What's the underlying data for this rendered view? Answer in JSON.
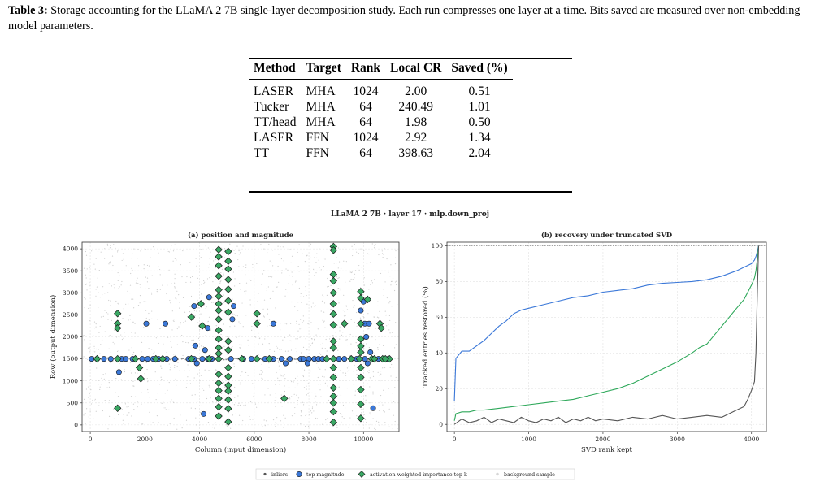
{
  "caption": {
    "label": "Table 3:",
    "text": "Storage accounting for the LLaMA 2 7B single-layer decomposition study. Each run compresses one layer at a time. Bits saved are measured over non-embedding model parameters."
  },
  "table": {
    "headers": [
      "Method",
      "Target",
      "Rank",
      "Local CR",
      "Saved (%)"
    ],
    "rows": [
      [
        "LASER",
        "MHA",
        "1024",
        "2.00",
        "0.51"
      ],
      [
        "Tucker",
        "MHA",
        "64",
        "240.49",
        "1.01"
      ],
      [
        "TT/head",
        "MHA",
        "64",
        "1.98",
        "0.50"
      ],
      [
        "LASER",
        "FFN",
        "1024",
        "2.92",
        "1.34"
      ],
      [
        "TT",
        "FFN",
        "64",
        "398.63",
        "2.04"
      ]
    ]
  },
  "figure": {
    "suptitle": "LLaMA 2 7B · layer 17 · mlp.down_proj",
    "legend": [
      "inliers",
      "top magnitude",
      "activation-weighted importance top-k",
      "background sample"
    ]
  },
  "chart_data": [
    {
      "type": "scatter",
      "title": "(a) position and magnitude",
      "xlabel": "Column (input dimension)",
      "ylabel": "Row (output dimension)",
      "xlim": [
        -300,
        11300
      ],
      "ylim": [
        -150,
        4150
      ],
      "xticks": [
        0,
        2000,
        4000,
        6000,
        8000,
        10000
      ],
      "yticks": [
        0,
        500,
        1000,
        1500,
        2000,
        2500,
        3000,
        3500,
        4000
      ],
      "grid": true,
      "series": [
        {
          "name": "top magnitude",
          "color": "#3b78d8",
          "points": [
            [
              50,
              1500
            ],
            [
              250,
              1500
            ],
            [
              500,
              1500
            ],
            [
              750,
              1500
            ],
            [
              1150,
              1500
            ],
            [
              1300,
              1500
            ],
            [
              1550,
              1500
            ],
            [
              1900,
              1500
            ],
            [
              2100,
              1500
            ],
            [
              2300,
              1500
            ],
            [
              2500,
              1500
            ],
            [
              2800,
              1500
            ],
            [
              3100,
              1500
            ],
            [
              3600,
              1500
            ],
            [
              3800,
              1500
            ],
            [
              4100,
              1500
            ],
            [
              4300,
              1500
            ],
            [
              4450,
              1500
            ],
            [
              5150,
              1500
            ],
            [
              5600,
              1500
            ],
            [
              5900,
              1500
            ],
            [
              6400,
              1500
            ],
            [
              6700,
              1500
            ],
            [
              7000,
              1500
            ],
            [
              7300,
              1500
            ],
            [
              7700,
              1500
            ],
            [
              7800,
              1500
            ],
            [
              8000,
              1500
            ],
            [
              8200,
              1500
            ],
            [
              8350,
              1500
            ],
            [
              8500,
              1500
            ],
            [
              9100,
              1500
            ],
            [
              9300,
              1500
            ],
            [
              9550,
              1500
            ],
            [
              9750,
              1500
            ],
            [
              10050,
              1500
            ],
            [
              10350,
              1500
            ],
            [
              10550,
              1500
            ],
            [
              10800,
              1500
            ],
            [
              10900,
              1500
            ],
            [
              1050,
              1200
            ],
            [
              2050,
              2300
            ],
            [
              2750,
              2300
            ],
            [
              3800,
              2700
            ],
            [
              3850,
              1800
            ],
            [
              3900,
              1400
            ],
            [
              4200,
              1700
            ],
            [
              4300,
              2200
            ],
            [
              4350,
              2900
            ],
            [
              5200,
              2400
            ],
            [
              5250,
              2700
            ],
            [
              6700,
              2300
            ],
            [
              7150,
              1400
            ],
            [
              7950,
              1400
            ],
            [
              9900,
              2600
            ],
            [
              10000,
              2800
            ],
            [
              10050,
              2300
            ],
            [
              10100,
              2000
            ],
            [
              10150,
              1400
            ],
            [
              10200,
              2300
            ],
            [
              10250,
              1650
            ],
            [
              10350,
              380
            ],
            [
              4150,
              250
            ]
          ]
        },
        {
          "name": "activation-weighted importance top-k",
          "color": "#3aa864",
          "points": [
            [
              250,
              1500
            ],
            [
              1000,
              2530
            ],
            [
              1000,
              2300
            ],
            [
              1000,
              2200
            ],
            [
              1000,
              1500
            ],
            [
              1000,
              380
            ],
            [
              1650,
              1500
            ],
            [
              1800,
              1300
            ],
            [
              1850,
              1050
            ],
            [
              2400,
              1500
            ],
            [
              2650,
              1500
            ],
            [
              3700,
              1500
            ],
            [
              3700,
              2450
            ],
            [
              4050,
              2750
            ],
            [
              4100,
              2250
            ],
            [
              4350,
              1500
            ],
            [
              4700,
              1500
            ],
            [
              4700,
              3980
            ],
            [
              4700,
              3820
            ],
            [
              4700,
              3620
            ],
            [
              4700,
              3380
            ],
            [
              4700,
              3070
            ],
            [
              4700,
              2920
            ],
            [
              4700,
              2750
            ],
            [
              4700,
              2600
            ],
            [
              4700,
              2400
            ],
            [
              4700,
              2150
            ],
            [
              4700,
              1950
            ],
            [
              4700,
              1750
            ],
            [
              4700,
              1620
            ],
            [
              4700,
              1150
            ],
            [
              4700,
              950
            ],
            [
              4700,
              780
            ],
            [
              4700,
              600
            ],
            [
              4700,
              410
            ],
            [
              4700,
              200
            ],
            [
              5050,
              3940
            ],
            [
              5050,
              3720
            ],
            [
              5050,
              3540
            ],
            [
              5050,
              3300
            ],
            [
              5050,
              3080
            ],
            [
              5050,
              2820
            ],
            [
              5050,
              2560
            ],
            [
              5050,
              1900
            ],
            [
              5050,
              1700
            ],
            [
              5050,
              1300
            ],
            [
              5050,
              1100
            ],
            [
              5050,
              900
            ],
            [
              5050,
              770
            ],
            [
              5050,
              570
            ],
            [
              5050,
              370
            ],
            [
              5050,
              70
            ],
            [
              5550,
              1500
            ],
            [
              6100,
              2530
            ],
            [
              6100,
              2300
            ],
            [
              6100,
              1500
            ],
            [
              6550,
              1500
            ],
            [
              7100,
              600
            ],
            [
              8900,
              4050
            ],
            [
              8900,
              3970
            ],
            [
              8900,
              3420
            ],
            [
              8900,
              3270
            ],
            [
              8900,
              3000
            ],
            [
              8900,
              2750
            ],
            [
              8900,
              2520
            ],
            [
              8900,
              2270
            ],
            [
              8900,
              1900
            ],
            [
              8900,
              1750
            ],
            [
              8900,
              1500
            ],
            [
              8900,
              1300
            ],
            [
              8900,
              1080
            ],
            [
              8900,
              840
            ],
            [
              8900,
              650
            ],
            [
              8900,
              500
            ],
            [
              8900,
              300
            ],
            [
              8900,
              60
            ],
            [
              9300,
              2300
            ],
            [
              9850,
              1500
            ],
            [
              9900,
              3030
            ],
            [
              9900,
              2880
            ],
            [
              9900,
              2300
            ],
            [
              9900,
              1950
            ],
            [
              9900,
              1790
            ],
            [
              9900,
              1650
            ],
            [
              9900,
              1300
            ],
            [
              9900,
              1080
            ],
            [
              9900,
              800
            ],
            [
              9900,
              470
            ],
            [
              9900,
              150
            ],
            [
              10300,
              1500
            ],
            [
              10400,
              1500
            ],
            [
              10600,
              2300
            ],
            [
              10650,
              2200
            ],
            [
              10700,
              1500
            ],
            [
              10950,
              1500
            ],
            [
              10150,
              2850
            ],
            [
              8650,
              1500
            ],
            [
              9550,
              1500
            ],
            [
              10800,
              1500
            ]
          ]
        }
      ]
    },
    {
      "type": "line",
      "title": "(b) recovery under truncated SVD",
      "xlabel": "SVD rank kept",
      "ylabel": "Tracked entries restored (%)",
      "xlim": [
        -100,
        4200
      ],
      "ylim": [
        -4,
        102
      ],
      "xticks": [
        0,
        1000,
        2000,
        3000,
        4000
      ],
      "yticks": [
        0,
        20,
        40,
        60,
        80,
        100
      ],
      "grid": true,
      "series": [
        {
          "name": "top magnitude",
          "color": "#3b78d8",
          "x": [
            0,
            20,
            100,
            200,
            300,
            400,
            500,
            600,
            700,
            800,
            900,
            1000,
            1200,
            1400,
            1600,
            1800,
            2000,
            2200,
            2400,
            2600,
            2800,
            3000,
            3200,
            3400,
            3600,
            3800,
            3900,
            4000,
            4040,
            4060,
            4080,
            4096
          ],
          "y": [
            13,
            37,
            41,
            41,
            44,
            47,
            51,
            55,
            58,
            62,
            64,
            65,
            67,
            69,
            71,
            72,
            74,
            75,
            76,
            78,
            79,
            79.5,
            80,
            81,
            83,
            86,
            88,
            90,
            92,
            94,
            97,
            100
          ]
        },
        {
          "name": "activation-weighted importance top-k",
          "color": "#2ea85a",
          "x": [
            0,
            20,
            100,
            200,
            300,
            400,
            600,
            800,
            1000,
            1200,
            1400,
            1600,
            1800,
            2000,
            2200,
            2400,
            2600,
            2800,
            3000,
            3200,
            3300,
            3400,
            3500,
            3600,
            3700,
            3800,
            3900,
            4000,
            4040,
            4060,
            4080,
            4096
          ],
          "y": [
            2,
            6,
            7,
            7,
            8,
            8,
            9,
            10,
            11,
            12,
            13,
            14,
            16,
            18,
            20,
            23,
            27,
            31,
            35,
            40,
            43,
            45,
            50,
            55,
            60,
            65,
            70,
            78,
            82,
            86,
            93,
            100
          ]
        },
        {
          "name": "inliers",
          "color": "#555555",
          "x": [
            0,
            100,
            200,
            300,
            400,
            500,
            600,
            700,
            800,
            900,
            1000,
            1100,
            1200,
            1300,
            1400,
            1500,
            1600,
            1700,
            1800,
            1900,
            2000,
            2200,
            2400,
            2600,
            2800,
            3000,
            3200,
            3400,
            3600,
            3700,
            3800,
            3900,
            3950,
            4000,
            4040,
            4060,
            4080,
            4096
          ],
          "y": [
            0,
            3,
            1,
            2,
            4,
            1,
            3,
            2,
            1,
            4,
            2,
            1,
            3,
            2,
            4,
            1,
            3,
            2,
            4,
            2,
            3,
            2,
            4,
            3,
            5,
            3,
            4,
            5,
            4,
            6,
            8,
            10,
            14,
            19,
            24,
            40,
            75,
            100
          ]
        }
      ]
    }
  ]
}
